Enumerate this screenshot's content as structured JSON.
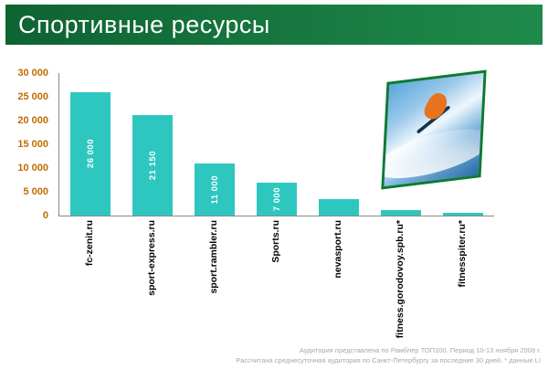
{
  "header": {
    "title": "Спортивные ресурсы"
  },
  "colors": {
    "header_dark": "#0e6332",
    "header_light": "#1f8a4b",
    "bar": "#2ec7c0",
    "tick": "#bf6c00",
    "footer_text": "#a8a8a8"
  },
  "chart_data": {
    "type": "bar",
    "title": "Спортивные ресурсы",
    "categories": [
      "fc-zenit.ru",
      "sport-express.ru",
      "sport.rambler.ru",
      "Sports.ru",
      "nevasport.ru",
      "fitness.gorodovoy.spb.ru*",
      "fitnesspiter.ru*"
    ],
    "values": [
      26000,
      21150,
      11000,
      7000,
      3400,
      1200,
      600
    ],
    "bar_labels": [
      "26 000",
      "21 150",
      "11 000",
      "7 000",
      "",
      "",
      ""
    ],
    "xlabel": "",
    "ylabel": "",
    "ylim": [
      0,
      30000
    ],
    "yticks": [
      "30 000",
      "25 000",
      "20 000",
      "15 000",
      "10 000",
      "5 000",
      "0"
    ],
    "grid": false,
    "legend": false
  },
  "photo": {
    "alt": "skier-jump-photo"
  },
  "footer": {
    "line1": "Аудитория представлена по Рамблер ТОП100. Период 10-13 ноября 2008 г.",
    "line2": "Рассчитана среднесуточная аудитория по Санкт-Петербургу за последние 30 дней. * данные LI"
  }
}
